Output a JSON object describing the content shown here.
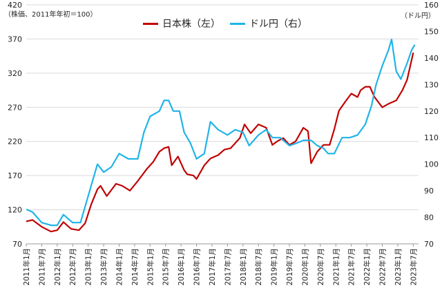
{
  "chart_data": {
    "type": "line",
    "left_unit": "（株価、2011年年初＝100）",
    "right_unit": "（ドル円）",
    "y_left": {
      "min": 70,
      "max": 420,
      "ticks": [
        70,
        120,
        170,
        220,
        270,
        320,
        370,
        420
      ]
    },
    "y_right": {
      "min": 70,
      "max": 160,
      "ticks": [
        70,
        80,
        90,
        100,
        110,
        120,
        130,
        140,
        150,
        160
      ]
    },
    "grid": true,
    "legend": "top-center",
    "x_labels": [
      "2011年1月",
      "2011年7月",
      "2012年1月",
      "2012年7月",
      "2013年1月",
      "2013年7月",
      "2014年1月",
      "2014年7月",
      "2015年1月",
      "2015年7月",
      "2016年1月",
      "2016年7月",
      "2017年1月",
      "2017年7月",
      "2018年1月",
      "2018年7月",
      "2019年1月",
      "2019年7月",
      "2020年1月",
      "2020年7月",
      "2021年1月",
      "2021年7月",
      "2022年1月",
      "2022年7月",
      "2023年1月",
      "2023年7月"
    ],
    "series": [
      {
        "name": "日本株（左）",
        "axis": "left",
        "color": "#c00000",
        "x": [
          2011.0,
          2011.2,
          2011.5,
          2011.8,
          2012.0,
          2012.2,
          2012.45,
          2012.7,
          2012.9,
          2013.1,
          2013.3,
          2013.4,
          2013.6,
          2013.9,
          2014.1,
          2014.35,
          2014.6,
          2014.9,
          2015.1,
          2015.3,
          2015.45,
          2015.6,
          2015.7,
          2015.9,
          2016.1,
          2016.2,
          2016.4,
          2016.5,
          2016.75,
          2016.95,
          2017.2,
          2017.4,
          2017.6,
          2017.9,
          2018.05,
          2018.25,
          2018.5,
          2018.75,
          2018.95,
          2019.1,
          2019.3,
          2019.5,
          2019.7,
          2019.95,
          2020.1,
          2020.2,
          2020.4,
          2020.6,
          2020.8,
          2020.95,
          2021.1,
          2021.3,
          2021.5,
          2021.7,
          2021.8,
          2021.95,
          2022.1,
          2022.25,
          2022.5,
          2022.7,
          2022.95,
          2023.15,
          2023.3,
          2023.4,
          2023.5
        ],
        "values": [
          103,
          105,
          95,
          88,
          90,
          102,
          92,
          90,
          100,
          128,
          150,
          155,
          140,
          158,
          155,
          148,
          162,
          180,
          190,
          205,
          210,
          212,
          185,
          198,
          178,
          172,
          170,
          165,
          185,
          195,
          200,
          208,
          210,
          225,
          245,
          232,
          245,
          240,
          215,
          220,
          225,
          215,
          220,
          240,
          235,
          188,
          205,
          215,
          215,
          238,
          265,
          278,
          290,
          285,
          295,
          300,
          300,
          285,
          270,
          275,
          280,
          295,
          310,
          330,
          350
        ]
      },
      {
        "name": "ドル円（右）",
        "axis": "right",
        "color": "#1fb4e8",
        "x": [
          2011.0,
          2011.2,
          2011.5,
          2011.8,
          2012.0,
          2012.2,
          2012.5,
          2012.75,
          2012.9,
          2013.1,
          2013.3,
          2013.5,
          2013.75,
          2014.0,
          2014.3,
          2014.6,
          2014.8,
          2015.0,
          2015.3,
          2015.45,
          2015.6,
          2015.75,
          2015.95,
          2016.1,
          2016.3,
          2016.5,
          2016.75,
          2016.95,
          2017.2,
          2017.5,
          2017.75,
          2018.0,
          2018.2,
          2018.5,
          2018.75,
          2018.95,
          2019.2,
          2019.5,
          2019.75,
          2019.95,
          2020.2,
          2020.4,
          2020.6,
          2020.75,
          2020.95,
          2021.2,
          2021.45,
          2021.7,
          2021.95,
          2022.15,
          2022.3,
          2022.5,
          2022.7,
          2022.8,
          2022.95,
          2023.1,
          2023.3,
          2023.45,
          2023.55
        ],
        "values": [
          83,
          82,
          78,
          77,
          77,
          81,
          78,
          78,
          84,
          92,
          100,
          97,
          99,
          104,
          102,
          102,
          112,
          118,
          120,
          124,
          124,
          120,
          120,
          112,
          108,
          102,
          104,
          116,
          113,
          111,
          113,
          112,
          107,
          111,
          113,
          110,
          110,
          107,
          108,
          109,
          109,
          107,
          106,
          104,
          104,
          110,
          110,
          111,
          115,
          122,
          130,
          137,
          143,
          147,
          135,
          132,
          138,
          143,
          145
        ]
      }
    ]
  }
}
